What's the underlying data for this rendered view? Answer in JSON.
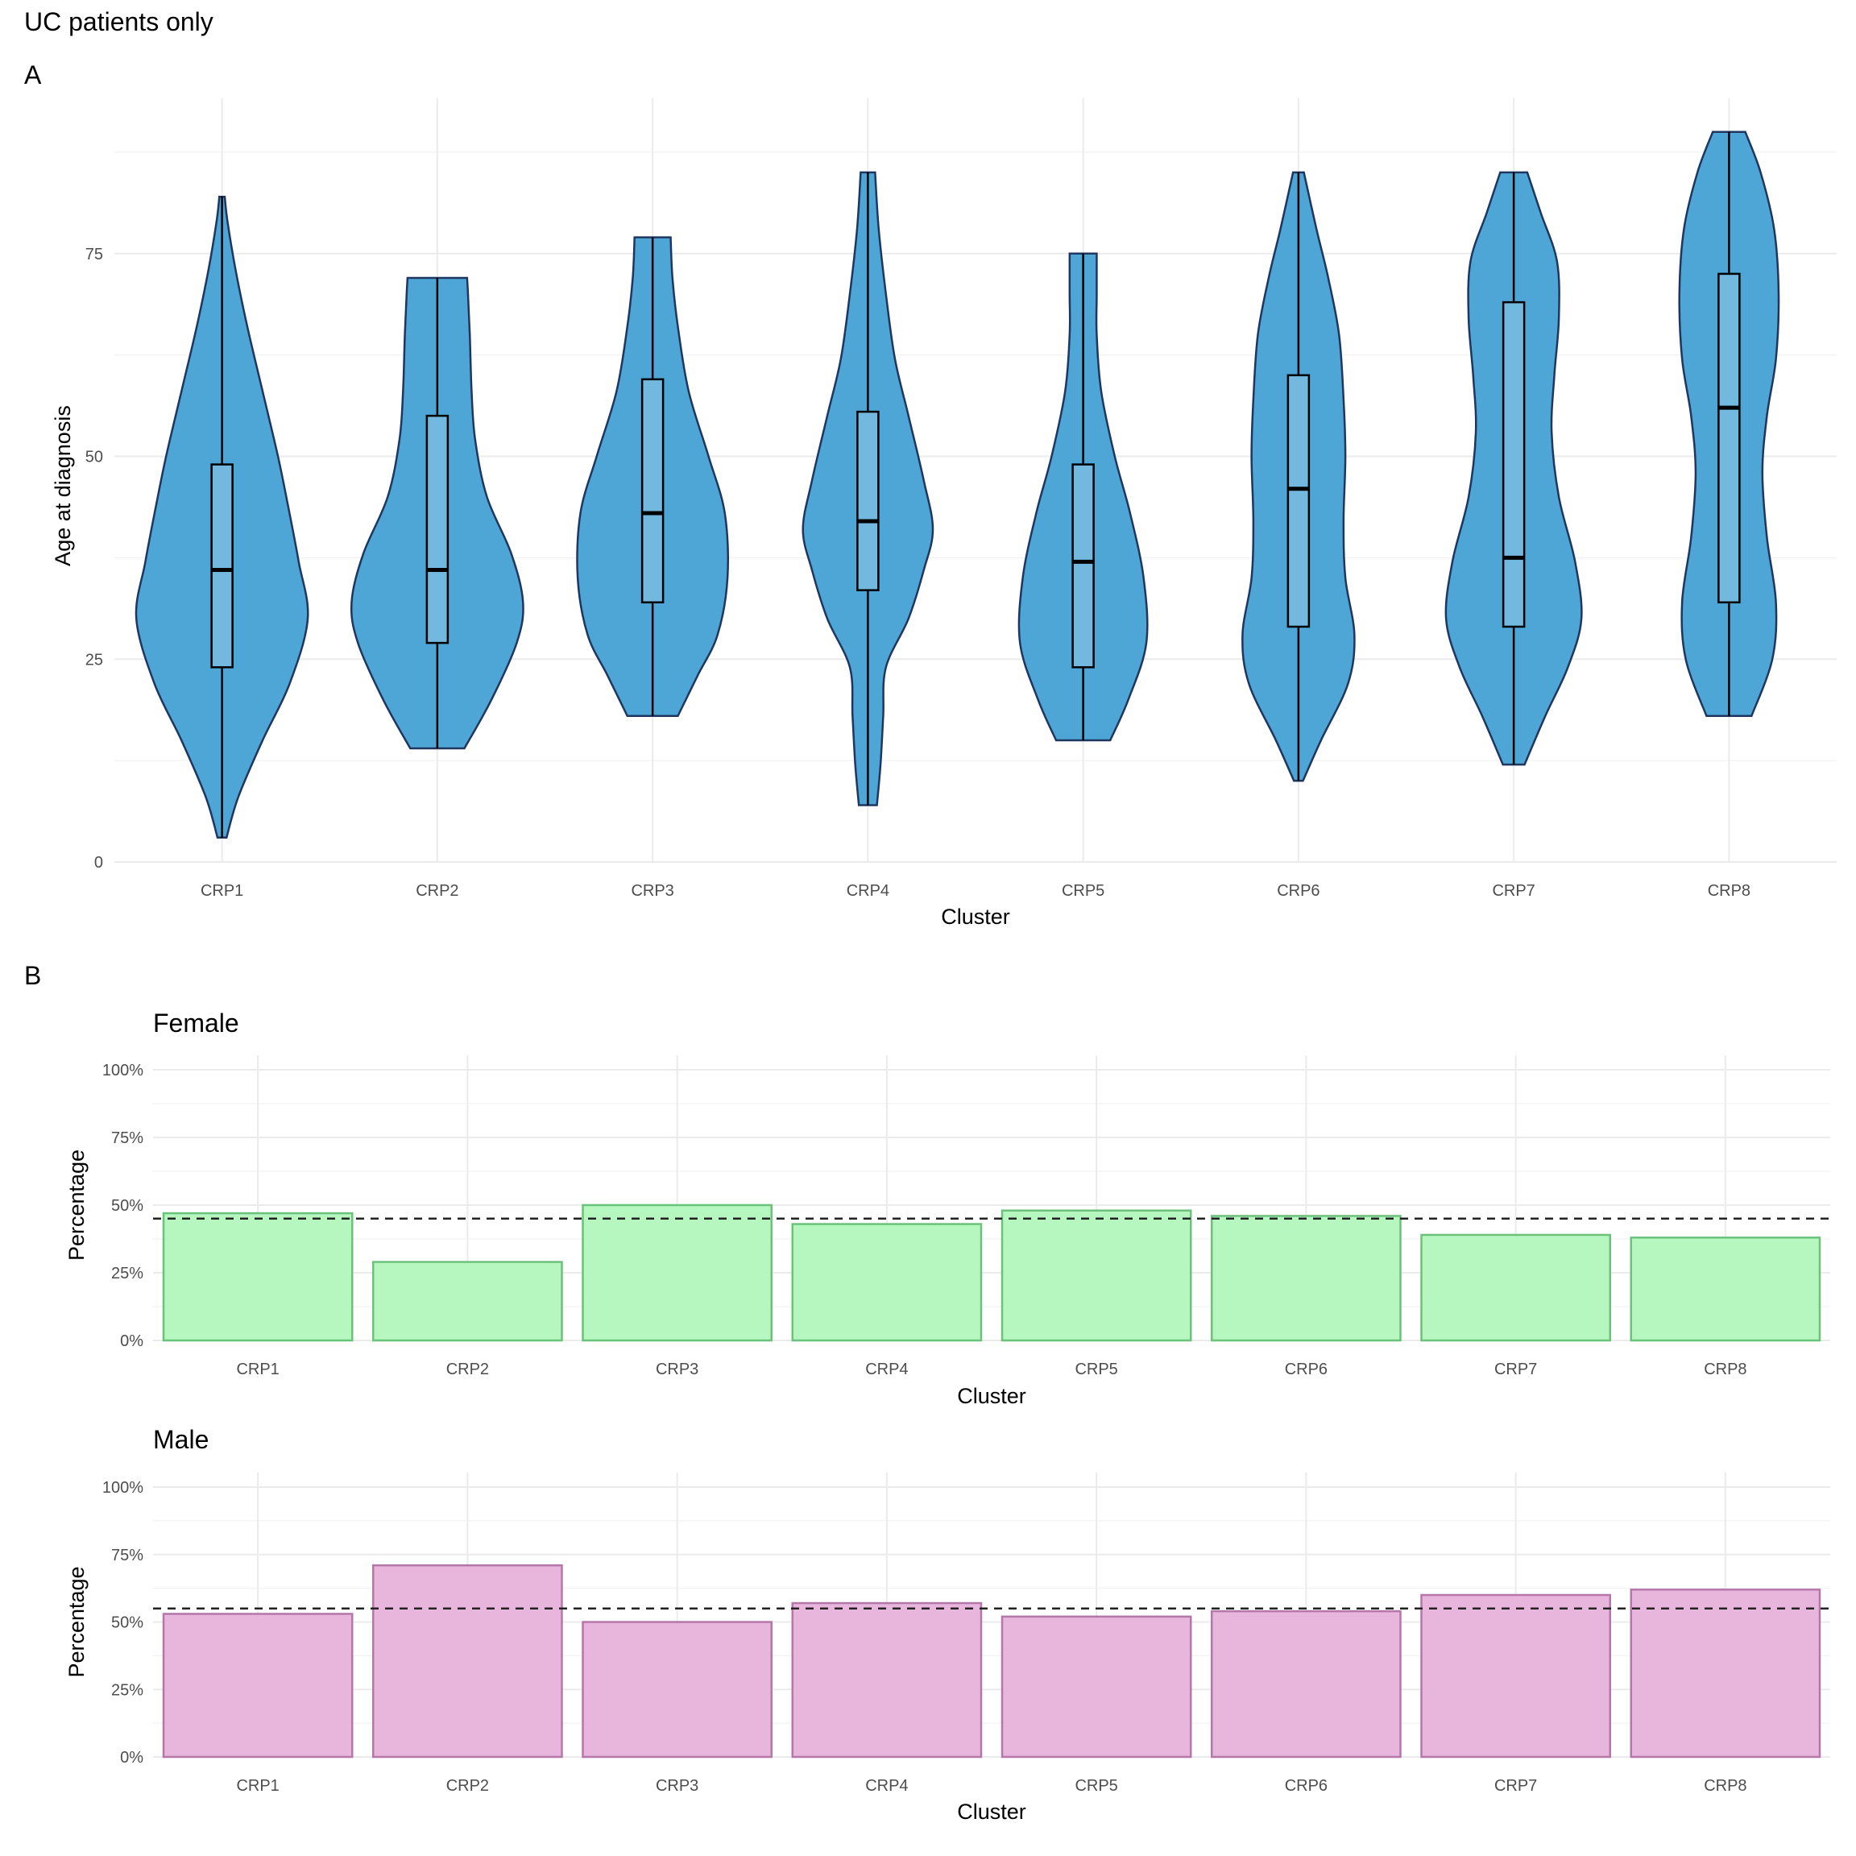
{
  "figure": {
    "title": "UC patients only",
    "panel_a_label": "A",
    "panel_b_label": "B"
  },
  "chart_data": [
    {
      "type": "violin",
      "panel": "A",
      "title": "",
      "xlabel": "Cluster",
      "ylabel": "Age at diagnosis",
      "categories": [
        "CRP1",
        "CRP2",
        "CRP3",
        "CRP4",
        "CRP5",
        "CRP6",
        "CRP7",
        "CRP8"
      ],
      "ylim": [
        0,
        90
      ],
      "yticks": [
        0,
        25,
        50,
        75
      ],
      "grid": true,
      "fill_color": "#4ea6d6",
      "outline_color": "#1f3760",
      "box_color": "#73b8de",
      "series": [
        {
          "category": "CRP1",
          "min": 3,
          "q1": 24,
          "median": 36,
          "q3": 49,
          "max": 82,
          "density": [
            [
              3,
              0.05
            ],
            [
              8,
              0.18
            ],
            [
              15,
              0.45
            ],
            [
              22,
              0.75
            ],
            [
              30,
              0.95
            ],
            [
              37,
              0.85
            ],
            [
              44,
              0.73
            ],
            [
              50,
              0.62
            ],
            [
              58,
              0.45
            ],
            [
              66,
              0.28
            ],
            [
              73,
              0.15
            ],
            [
              79,
              0.06
            ],
            [
              82,
              0.03
            ]
          ]
        },
        {
          "category": "CRP2",
          "min": 14,
          "q1": 27,
          "median": 36,
          "q3": 55,
          "max": 72,
          "density": [
            [
              14,
              0.3
            ],
            [
              20,
              0.6
            ],
            [
              27,
              0.88
            ],
            [
              32,
              0.95
            ],
            [
              38,
              0.82
            ],
            [
              45,
              0.55
            ],
            [
              52,
              0.42
            ],
            [
              58,
              0.38
            ],
            [
              65,
              0.36
            ],
            [
              70,
              0.34
            ],
            [
              72,
              0.33
            ]
          ]
        },
        {
          "category": "CRP3",
          "min": 18,
          "q1": 32,
          "median": 43,
          "q3": 59.5,
          "max": 77,
          "density": [
            [
              18,
              0.28
            ],
            [
              23,
              0.5
            ],
            [
              28,
              0.72
            ],
            [
              35,
              0.83
            ],
            [
              43,
              0.8
            ],
            [
              50,
              0.62
            ],
            [
              58,
              0.4
            ],
            [
              66,
              0.28
            ],
            [
              72,
              0.22
            ],
            [
              77,
              0.2
            ]
          ]
        },
        {
          "category": "CRP4",
          "min": 7,
          "q1": 33.5,
          "median": 42,
          "q3": 55.5,
          "max": 85,
          "density": [
            [
              7,
              0.1
            ],
            [
              12,
              0.14
            ],
            [
              18,
              0.17
            ],
            [
              24,
              0.2
            ],
            [
              30,
              0.45
            ],
            [
              36,
              0.62
            ],
            [
              41,
              0.72
            ],
            [
              47,
              0.62
            ],
            [
              55,
              0.45
            ],
            [
              62,
              0.3
            ],
            [
              70,
              0.2
            ],
            [
              78,
              0.12
            ],
            [
              85,
              0.08
            ]
          ]
        },
        {
          "category": "CRP5",
          "min": 15,
          "q1": 24,
          "median": 37,
          "q3": 49,
          "max": 75,
          "density": [
            [
              15,
              0.3
            ],
            [
              20,
              0.5
            ],
            [
              27,
              0.7
            ],
            [
              35,
              0.67
            ],
            [
              43,
              0.52
            ],
            [
              50,
              0.35
            ],
            [
              58,
              0.2
            ],
            [
              65,
              0.15
            ],
            [
              70,
              0.15
            ],
            [
              75,
              0.15
            ]
          ]
        },
        {
          "category": "CRP6",
          "min": 10,
          "q1": 29,
          "median": 46,
          "q3": 60,
          "max": 85,
          "density": [
            [
              10,
              0.05
            ],
            [
              15,
              0.25
            ],
            [
              22,
              0.55
            ],
            [
              28,
              0.62
            ],
            [
              35,
              0.52
            ],
            [
              42,
              0.5
            ],
            [
              50,
              0.52
            ],
            [
              57,
              0.5
            ],
            [
              65,
              0.45
            ],
            [
              72,
              0.33
            ],
            [
              78,
              0.2
            ],
            [
              85,
              0.06
            ]
          ]
        },
        {
          "category": "CRP7",
          "min": 12,
          "q1": 29,
          "median": 37.5,
          "q3": 69,
          "max": 85,
          "density": [
            [
              12,
              0.12
            ],
            [
              18,
              0.35
            ],
            [
              24,
              0.6
            ],
            [
              30,
              0.75
            ],
            [
              37,
              0.68
            ],
            [
              45,
              0.5
            ],
            [
              53,
              0.42
            ],
            [
              60,
              0.45
            ],
            [
              67,
              0.5
            ],
            [
              74,
              0.48
            ],
            [
              80,
              0.3
            ],
            [
              85,
              0.15
            ]
          ]
        },
        {
          "category": "CRP8",
          "min": 18,
          "q1": 32,
          "median": 56,
          "q3": 72.5,
          "max": 90,
          "density": [
            [
              18,
              0.25
            ],
            [
              25,
              0.48
            ],
            [
              32,
              0.52
            ],
            [
              40,
              0.42
            ],
            [
              48,
              0.37
            ],
            [
              55,
              0.42
            ],
            [
              62,
              0.52
            ],
            [
              70,
              0.55
            ],
            [
              78,
              0.5
            ],
            [
              85,
              0.35
            ],
            [
              90,
              0.18
            ]
          ]
        }
      ]
    },
    {
      "type": "bar",
      "panel": "B",
      "title": "Female",
      "xlabel": "Cluster",
      "ylabel": "Percentage",
      "categories": [
        "CRP1",
        "CRP2",
        "CRP3",
        "CRP4",
        "CRP5",
        "CRP6",
        "CRP7",
        "CRP8"
      ],
      "values": [
        47,
        29,
        50,
        43,
        48,
        46,
        39,
        38
      ],
      "reference_line": 45,
      "ylim": [
        0,
        100
      ],
      "ytick_labels": [
        "0%",
        "25%",
        "50%",
        "75%",
        "100%"
      ],
      "grid": true,
      "fill_color": "#b5f7bf",
      "outline_color": "#6cc17b"
    },
    {
      "type": "bar",
      "panel": "B",
      "title": "Male",
      "xlabel": "Cluster",
      "ylabel": "Percentage",
      "categories": [
        "CRP1",
        "CRP2",
        "CRP3",
        "CRP4",
        "CRP5",
        "CRP6",
        "CRP7",
        "CRP8"
      ],
      "values": [
        53,
        71,
        50,
        57,
        52,
        54,
        60,
        62
      ],
      "reference_line": 55,
      "ylim": [
        0,
        100
      ],
      "ytick_labels": [
        "0%",
        "25%",
        "50%",
        "75%",
        "100%"
      ],
      "grid": true,
      "fill_color": "#e8b6dd",
      "outline_color": "#b577aa"
    }
  ]
}
